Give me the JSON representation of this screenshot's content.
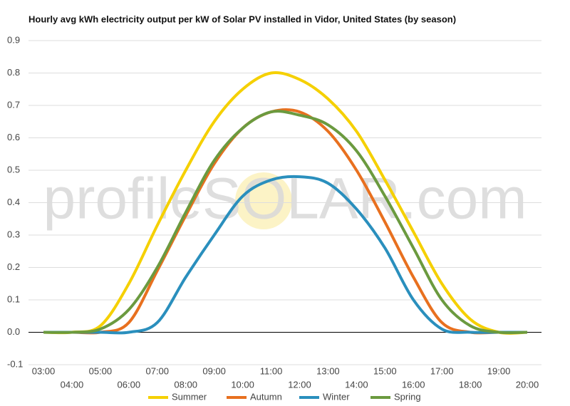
{
  "chart_data": {
    "type": "line",
    "title": "Hourly avg kWh electricity output per kW of Solar PV installed in Vidor, United States (by season)",
    "watermark": "profileSOLAR.com",
    "categories": [
      "03:00",
      "04:00",
      "05:00",
      "06:00",
      "07:00",
      "08:00",
      "09:00",
      "10:00",
      "11:00",
      "12:00",
      "13:00",
      "14:00",
      "15:00",
      "16:00",
      "17:00",
      "18:00",
      "19:00",
      "20:00"
    ],
    "series": [
      {
        "name": "Summer",
        "color": "#f5d000",
        "values": [
          0,
          0,
          0.02,
          0.15,
          0.33,
          0.5,
          0.65,
          0.75,
          0.8,
          0.78,
          0.72,
          0.62,
          0.47,
          0.31,
          0.15,
          0.04,
          0,
          0
        ]
      },
      {
        "name": "Autumn",
        "color": "#e8701f",
        "values": [
          0,
          0,
          0,
          0.03,
          0.19,
          0.36,
          0.52,
          0.63,
          0.68,
          0.68,
          0.62,
          0.5,
          0.34,
          0.17,
          0.03,
          0,
          0,
          0
        ]
      },
      {
        "name": "Winter",
        "color": "#2a8fbd",
        "values": [
          0,
          0,
          0,
          0,
          0.03,
          0.17,
          0.3,
          0.42,
          0.47,
          0.48,
          0.46,
          0.38,
          0.26,
          0.1,
          0.01,
          0,
          0,
          0
        ]
      },
      {
        "name": "Spring",
        "color": "#6b9a3f",
        "values": [
          0,
          0,
          0.01,
          0.07,
          0.2,
          0.37,
          0.53,
          0.63,
          0.68,
          0.67,
          0.64,
          0.56,
          0.42,
          0.26,
          0.1,
          0.02,
          0,
          0
        ]
      }
    ],
    "ylim": [
      -0.1,
      0.9
    ],
    "yticks": [
      -0.1,
      {
        "value": 0,
        "label": "0.0"
      },
      0.1,
      0.2,
      0.3,
      0.4,
      0.5,
      0.6,
      0.7,
      0.8,
      0.9
    ],
    "grid": true
  }
}
